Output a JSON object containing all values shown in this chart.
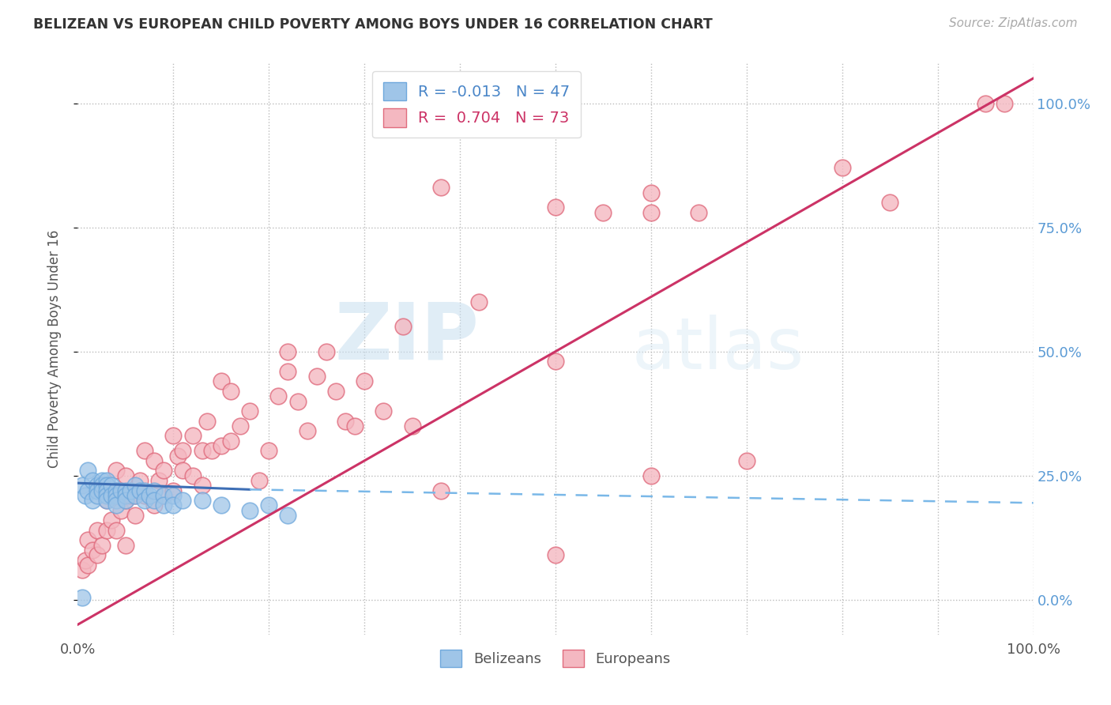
{
  "title": "BELIZEAN VS EUROPEAN CHILD POVERTY AMONG BOYS UNDER 16 CORRELATION CHART",
  "source": "Source: ZipAtlas.com",
  "ylabel": "Child Poverty Among Boys Under 16",
  "watermark_zip": "ZIP",
  "watermark_atlas": "atlas",
  "background_color": "#ffffff",
  "xlim": [
    0.0,
    1.0
  ],
  "ylim": [
    -0.07,
    1.08
  ],
  "belizean_color": "#9fc5e8",
  "european_color": "#f4b8c1",
  "belizean_edge": "#6fa8dc",
  "european_edge": "#e06c7e",
  "belizean_line_color": "#3d6eb5",
  "european_line_color": "#cc3366",
  "legend_R_belizean": "-0.013",
  "legend_N_belizean": "47",
  "legend_R_european": "0.704",
  "legend_N_european": "73",
  "grid_color": "#bbbbbb",
  "right_tick_color": "#5b9bd5",
  "belizean_scatter_x": [
    0.005,
    0.008,
    0.01,
    0.01,
    0.015,
    0.015,
    0.02,
    0.02,
    0.02,
    0.025,
    0.025,
    0.025,
    0.03,
    0.03,
    0.03,
    0.03,
    0.03,
    0.035,
    0.035,
    0.04,
    0.04,
    0.04,
    0.04,
    0.045,
    0.05,
    0.05,
    0.05,
    0.055,
    0.06,
    0.06,
    0.065,
    0.07,
    0.07,
    0.075,
    0.08,
    0.08,
    0.09,
    0.09,
    0.1,
    0.1,
    0.11,
    0.13,
    0.15,
    0.18,
    0.2,
    0.22,
    0.005
  ],
  "belizean_scatter_y": [
    0.23,
    0.21,
    0.26,
    0.22,
    0.24,
    0.2,
    0.23,
    0.22,
    0.21,
    0.24,
    0.23,
    0.22,
    0.24,
    0.23,
    0.22,
    0.21,
    0.2,
    0.23,
    0.21,
    0.22,
    0.21,
    0.2,
    0.19,
    0.22,
    0.22,
    0.21,
    0.2,
    0.22,
    0.23,
    0.21,
    0.22,
    0.22,
    0.2,
    0.21,
    0.22,
    0.2,
    0.21,
    0.19,
    0.21,
    0.19,
    0.2,
    0.2,
    0.19,
    0.18,
    0.19,
    0.17,
    0.005
  ],
  "european_scatter_x": [
    0.005,
    0.008,
    0.01,
    0.01,
    0.015,
    0.02,
    0.02,
    0.025,
    0.03,
    0.03,
    0.03,
    0.035,
    0.04,
    0.04,
    0.04,
    0.045,
    0.05,
    0.05,
    0.05,
    0.055,
    0.06,
    0.06,
    0.065,
    0.07,
    0.07,
    0.08,
    0.08,
    0.085,
    0.09,
    0.09,
    0.1,
    0.1,
    0.105,
    0.11,
    0.11,
    0.12,
    0.12,
    0.13,
    0.13,
    0.135,
    0.14,
    0.15,
    0.15,
    0.16,
    0.16,
    0.17,
    0.18,
    0.19,
    0.2,
    0.21,
    0.22,
    0.22,
    0.23,
    0.24,
    0.25,
    0.26,
    0.27,
    0.28,
    0.29,
    0.3,
    0.32,
    0.34,
    0.35,
    0.38,
    0.42,
    0.5,
    0.6,
    0.65,
    0.7,
    0.8,
    0.85,
    0.95,
    0.97
  ],
  "european_scatter_y": [
    0.06,
    0.08,
    0.07,
    0.12,
    0.1,
    0.09,
    0.14,
    0.11,
    0.14,
    0.2,
    0.22,
    0.16,
    0.14,
    0.22,
    0.26,
    0.18,
    0.11,
    0.2,
    0.25,
    0.21,
    0.17,
    0.21,
    0.24,
    0.21,
    0.3,
    0.19,
    0.28,
    0.24,
    0.21,
    0.26,
    0.22,
    0.33,
    0.29,
    0.26,
    0.3,
    0.25,
    0.33,
    0.23,
    0.3,
    0.36,
    0.3,
    0.31,
    0.44,
    0.32,
    0.42,
    0.35,
    0.38,
    0.24,
    0.3,
    0.41,
    0.5,
    0.46,
    0.4,
    0.34,
    0.45,
    0.5,
    0.42,
    0.36,
    0.35,
    0.44,
    0.38,
    0.55,
    0.35,
    0.22,
    0.6,
    0.48,
    0.25,
    0.78,
    0.28,
    0.87,
    0.8,
    1.0,
    1.0
  ],
  "european_extra_x": [
    0.38,
    0.5,
    0.55,
    0.6,
    0.6,
    0.5
  ],
  "european_extra_y": [
    0.83,
    0.79,
    0.78,
    0.82,
    0.78,
    0.09
  ],
  "belizean_trendline_x": [
    0.0,
    1.0
  ],
  "belizean_trendline_y_solid_start": 0.235,
  "belizean_trendline_y_solid_end": 0.222,
  "belizean_trendline_solid_end_x": 0.18,
  "belizean_trendline_y_dash_end": 0.195,
  "european_trendline_x": [
    0.0,
    1.0
  ],
  "european_trendline_y": [
    -0.05,
    1.05
  ]
}
